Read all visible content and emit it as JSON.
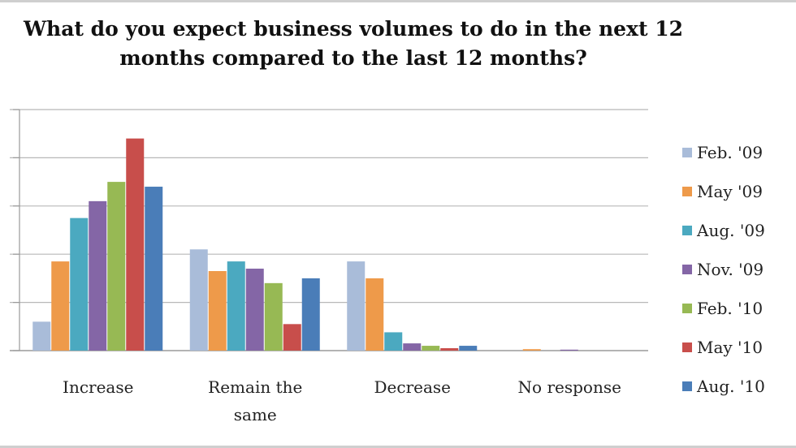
{
  "chart_data": {
    "type": "bar",
    "title_line1": "What do you expect business volumes to do in the next 12",
    "title_line2": "months compared to the last 12 months?",
    "categories": [
      "Increase",
      "Remain the same",
      "Decrease",
      "No response"
    ],
    "category_lines": [
      [
        "Increase"
      ],
      [
        "Remain the",
        "same"
      ],
      [
        "Decrease"
      ],
      [
        "No response"
      ]
    ],
    "ylim": [
      0,
      50
    ],
    "series": [
      {
        "name": "Feb. '09",
        "color": "#a9bcd9",
        "values": [
          6,
          21,
          18.5,
          0
        ]
      },
      {
        "name": "May '09",
        "color": "#ee9a4a",
        "values": [
          18.5,
          16.5,
          15,
          0.3
        ]
      },
      {
        "name": "Aug. '09",
        "color": "#4ba9c0",
        "values": [
          27.5,
          18.5,
          3.8,
          0
        ]
      },
      {
        "name": "Nov. '09",
        "color": "#8466a6",
        "values": [
          31,
          17,
          1.5,
          0.2
        ]
      },
      {
        "name": "Feb. '10",
        "color": "#97b954",
        "values": [
          35,
          14,
          1,
          0
        ]
      },
      {
        "name": "May '10",
        "color": "#c84e4b",
        "values": [
          44,
          5.5,
          0.5,
          0
        ]
      },
      {
        "name": "Aug. '10",
        "color": "#4a7db8",
        "values": [
          34,
          15,
          1,
          0
        ]
      }
    ]
  }
}
